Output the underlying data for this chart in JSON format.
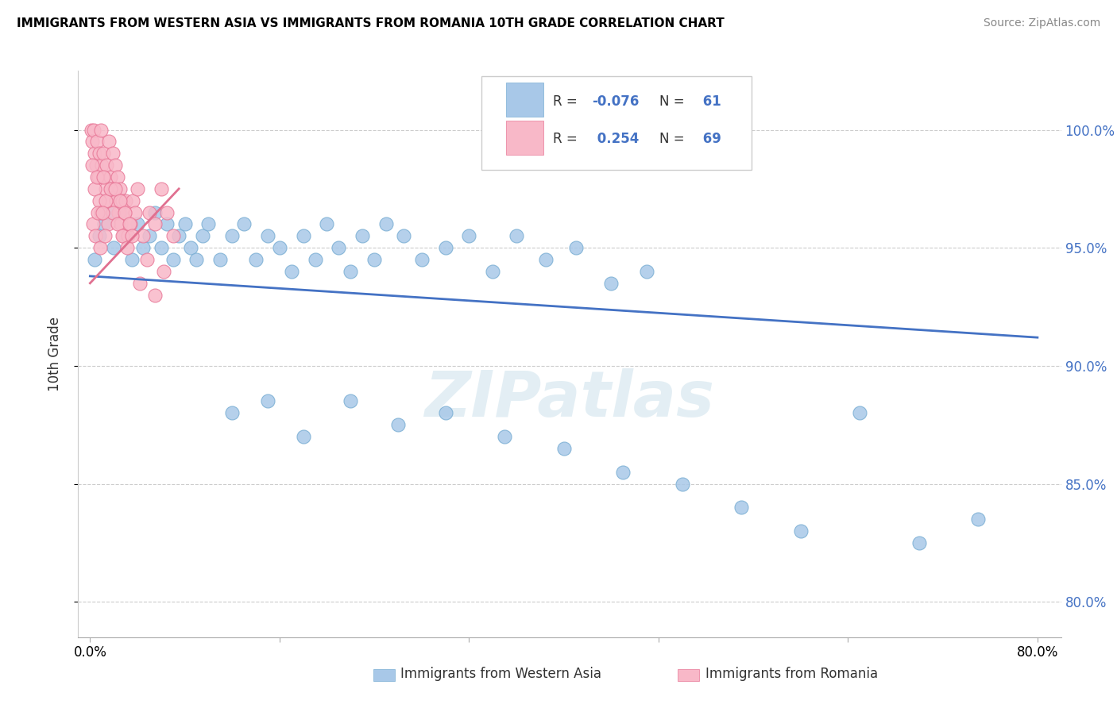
{
  "title": "IMMIGRANTS FROM WESTERN ASIA VS IMMIGRANTS FROM ROMANIA 10TH GRADE CORRELATION CHART",
  "source": "Source: ZipAtlas.com",
  "ylabel_label": "10th Grade",
  "y_ticks": [
    80.0,
    85.0,
    90.0,
    95.0,
    100.0
  ],
  "x_ticks": [
    0.0,
    16.0,
    32.0,
    48.0,
    64.0,
    80.0
  ],
  "x_tick_labels": [
    "0.0%",
    "",
    "",
    "",
    "",
    "80.0%"
  ],
  "x_lim": [
    -1.0,
    82.0
  ],
  "y_lim": [
    78.5,
    102.5
  ],
  "watermark": "ZIPatlas",
  "series1_color": "#a8c8e8",
  "series1_edge": "#7bafd4",
  "series2_color": "#f8b8c8",
  "series2_edge": "#e87898",
  "series1_name": "Immigrants from Western Asia",
  "series2_name": "Immigrants from Romania",
  "R1": -0.076,
  "N1": 61,
  "R2": 0.254,
  "N2": 69,
  "trend1_x": [
    0,
    80
  ],
  "trend1_y": [
    93.8,
    91.2
  ],
  "trend1_color": "#4472c4",
  "trend2_x": [
    0,
    7.5
  ],
  "trend2_y": [
    93.5,
    97.5
  ],
  "trend2_color": "#e07090",
  "blue_x": [
    0.4,
    0.8,
    1.2,
    1.6,
    2.0,
    2.5,
    3.0,
    3.5,
    4.0,
    4.5,
    5.0,
    5.5,
    6.0,
    6.5,
    7.0,
    7.5,
    8.0,
    8.5,
    9.0,
    9.5,
    10.0,
    11.0,
    12.0,
    13.0,
    14.0,
    15.0,
    16.0,
    17.0,
    18.0,
    19.0,
    20.0,
    21.0,
    22.0,
    23.0,
    24.0,
    25.0,
    26.5,
    28.0,
    30.0,
    32.0,
    34.0,
    36.0,
    38.5,
    41.0,
    44.0,
    47.0,
    12.0,
    15.0,
    18.0,
    22.0,
    26.0,
    30.0,
    35.0,
    40.0,
    45.0,
    50.0,
    55.0,
    60.0,
    65.0,
    70.0,
    75.0
  ],
  "blue_y": [
    94.5,
    95.5,
    96.0,
    96.5,
    95.0,
    96.5,
    95.5,
    94.5,
    96.0,
    95.0,
    95.5,
    96.5,
    95.0,
    96.0,
    94.5,
    95.5,
    96.0,
    95.0,
    94.5,
    95.5,
    96.0,
    94.5,
    95.5,
    96.0,
    94.5,
    95.5,
    95.0,
    94.0,
    95.5,
    94.5,
    96.0,
    95.0,
    94.0,
    95.5,
    94.5,
    96.0,
    95.5,
    94.5,
    95.0,
    95.5,
    94.0,
    95.5,
    94.5,
    95.0,
    93.5,
    94.0,
    88.0,
    88.5,
    87.0,
    88.5,
    87.5,
    88.0,
    87.0,
    86.5,
    85.5,
    85.0,
    84.0,
    83.0,
    88.0,
    82.5,
    83.5
  ],
  "pink_x": [
    0.1,
    0.2,
    0.3,
    0.4,
    0.5,
    0.6,
    0.7,
    0.8,
    0.9,
    1.0,
    1.1,
    1.2,
    1.3,
    1.4,
    1.5,
    1.6,
    1.7,
    1.8,
    1.9,
    2.0,
    2.1,
    2.2,
    2.3,
    2.4,
    2.5,
    2.6,
    2.7,
    2.8,
    2.9,
    3.0,
    3.2,
    3.4,
    3.6,
    3.8,
    4.0,
    4.5,
    5.0,
    5.5,
    6.0,
    6.5,
    0.15,
    0.35,
    0.55,
    0.75,
    0.95,
    1.15,
    1.35,
    1.55,
    1.75,
    1.95,
    2.15,
    2.35,
    2.55,
    2.75,
    2.95,
    3.15,
    3.35,
    3.55,
    4.2,
    4.8,
    5.5,
    6.2,
    7.0,
    0.25,
    0.45,
    0.65,
    0.85,
    1.05,
    1.25
  ],
  "pink_y": [
    100.0,
    99.5,
    100.0,
    99.0,
    98.5,
    99.5,
    98.0,
    99.0,
    100.0,
    98.5,
    99.0,
    98.0,
    97.5,
    98.5,
    97.0,
    99.5,
    98.0,
    97.5,
    99.0,
    97.5,
    98.5,
    97.0,
    98.0,
    96.5,
    97.5,
    96.0,
    97.0,
    95.5,
    96.5,
    97.0,
    95.5,
    96.0,
    97.0,
    96.5,
    97.5,
    95.5,
    96.5,
    96.0,
    97.5,
    96.5,
    98.5,
    97.5,
    98.0,
    97.0,
    96.5,
    98.0,
    97.0,
    96.0,
    97.5,
    96.5,
    97.5,
    96.0,
    97.0,
    95.5,
    96.5,
    95.0,
    96.0,
    95.5,
    93.5,
    94.5,
    93.0,
    94.0,
    95.5,
    96.0,
    95.5,
    96.5,
    95.0,
    96.5,
    95.5
  ]
}
